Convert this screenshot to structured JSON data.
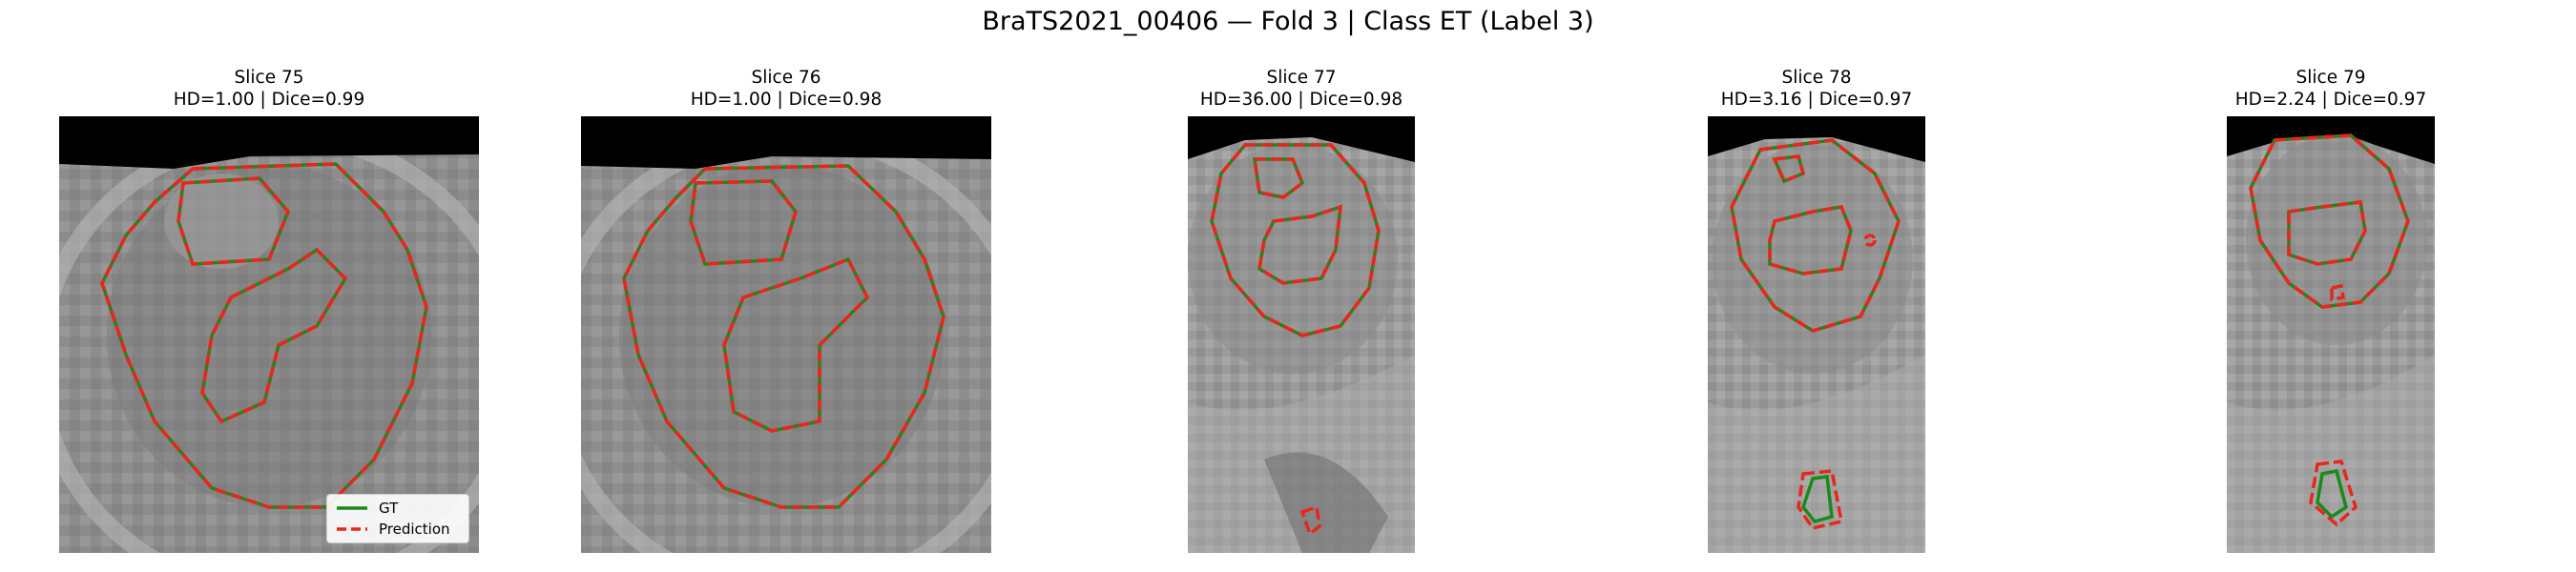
{
  "figure_title": "BraTS2021_00406 — Fold 3 | Class ET (Label 3)",
  "legend": {
    "gt_label": "GT",
    "pred_label": "Prediction"
  },
  "colors": {
    "gt": "#1a8a1a",
    "prediction": "#e8261c",
    "background": "#000000"
  },
  "panels": [
    {
      "slice": "Slice 75",
      "metrics": "HD=1.00 | Dice=0.99"
    },
    {
      "slice": "Slice 76",
      "metrics": "HD=1.00 | Dice=0.98"
    },
    {
      "slice": "Slice 77",
      "metrics": "HD=36.00 | Dice=0.98"
    },
    {
      "slice": "Slice 78",
      "metrics": "HD=3.16 | Dice=0.97"
    },
    {
      "slice": "Slice 79",
      "metrics": "HD=2.24 | Dice=0.97"
    }
  ]
}
